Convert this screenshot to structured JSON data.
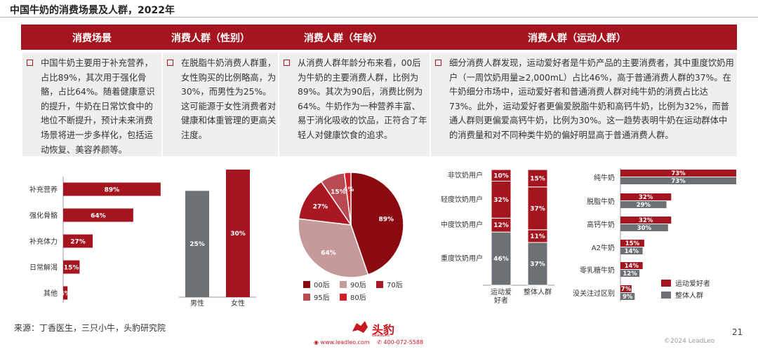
{
  "page": {
    "title": "中国牛奶的消费场景及人群，2022年",
    "source": "来源：丁香医生，三只小牛，头豹研究院",
    "page_number": "21",
    "copyright": "©2024 LeadLeo",
    "brand": {
      "name": "头豹",
      "sub": "LeadLeo",
      "website": "www.leadleo.com",
      "phone": "400-072-5588"
    }
  },
  "columns": [
    {
      "header": "消费场景",
      "text": "中国牛奶主要用于补充营养，占比89%，其次用于强化骨骼，占比64%。随着健康意识的提升，牛奶在日常饮食中的地位不断提升，预计未来消费场景将进一步多样化，包括运动恢复、美容养颜等。"
    },
    {
      "header": "消费人群（性别）",
      "text": "在脱脂牛奶消费人群重，女性购买的比例略高，为30%，而男性为25%。这可能源于女性消费者对健康和体重管理的更高关注度。"
    },
    {
      "header": "消费人群（年龄）",
      "text": "从消费人群年龄分布来看，00后为牛奶的主要消费人群，比例为89%。其次为90后，消费比例为64%。牛奶作为一种营养丰富、易于消化吸收的饮品，正符合了年轻人对健康饮食的追求。"
    },
    {
      "header": "消费人群（运动人群）",
      "text": "细分消费人群发现，运动爱好者是牛奶产品的主要消费者，其中重度饮奶用户（一周饮奶用量≥2,000mL）占比46%，高于普通消费人群的37%。在牛奶细分市场中，运动爱好者和普通消费人群对纯牛奶的消费占比达73%。此外，运动爱好者更偏爱脱脂牛奶和高钙牛奶，比例为32%，而普通人群则更偏爱高钙牛奶，比例为30%。这一趋势表明牛奶在运动群体中的消费量和对不同种类牛奶的偏好明显高于普通消费人群。"
    }
  ],
  "colors": {
    "dark_red": "#a5151f",
    "gray": "#6d7175",
    "pie": [
      "#8b0a12",
      "#c69a9a",
      "#a91822",
      "#ba4a51",
      "#d21f28"
    ]
  },
  "chart_data": [
    {
      "type": "bar",
      "orientation": "horizontal",
      "categories": [
        "补充营养",
        "强化骨骼",
        "补充体力",
        "日常解渴",
        "其他"
      ],
      "values": [
        89,
        64,
        27,
        15,
        4
      ],
      "labels": [
        "89%",
        "64%",
        "27%",
        "15%",
        "4%"
      ],
      "xlim": [
        0,
        100
      ]
    },
    {
      "type": "bar",
      "categories": [
        "男性",
        "女性"
      ],
      "values": [
        25,
        30
      ],
      "labels": [
        "25%",
        "30%"
      ],
      "ylim": [
        0,
        30
      ]
    },
    {
      "type": "pie",
      "categories": [
        "00后",
        "90后",
        "70后",
        "95后",
        "80后"
      ],
      "legend": [
        "00后",
        "90后",
        "70后",
        "95后",
        "80后"
      ],
      "values": [
        89,
        64,
        27,
        15,
        4
      ],
      "labels": [
        "89%",
        "64%",
        "27%",
        "15%",
        "4%"
      ]
    },
    {
      "type": "bar",
      "stacked": true,
      "percent": true,
      "categories": [
        "运动爱好者",
        "整体人群"
      ],
      "category_lines": [
        [
          "运动爱",
          "好者"
        ],
        [
          "整体人群"
        ]
      ],
      "segment_names": [
        "重度饮奶用户",
        "中度饮奶用户",
        "轻度饮奶用户",
        "非饮奶用户"
      ],
      "series": [
        {
          "name": "重度饮奶用户",
          "values": [
            46,
            37
          ],
          "labels": [
            "46%",
            "37%"
          ]
        },
        {
          "name": "中度饮奶用户",
          "values": [
            12,
            11
          ],
          "labels": [
            "12%",
            "11%"
          ]
        },
        {
          "name": "轻度饮奶用户",
          "values": [
            32,
            37
          ],
          "labels": [
            "32%",
            "37%"
          ]
        },
        {
          "name": "非饮奶用户",
          "values": [
            10,
            15
          ],
          "labels": [
            "10%",
            "15%"
          ]
        }
      ]
    },
    {
      "type": "bar",
      "orientation": "horizontal",
      "categories": [
        "纯牛奶",
        "脱脂牛奶",
        "高钙牛奶",
        "A2牛奶",
        "零乳糖牛奶",
        "没关注过区别"
      ],
      "series": [
        {
          "name": "运动爱好者",
          "values": [
            73,
            32,
            32,
            15,
            14,
            7
          ],
          "labels": [
            "73%",
            "32%",
            "32%",
            "15%",
            "14%",
            "7%"
          ]
        },
        {
          "name": "整体人群",
          "values": [
            73,
            29,
            30,
            14,
            12,
            9
          ],
          "labels": [
            "73%",
            "29%",
            "30%",
            "14%",
            "12%",
            "9%"
          ]
        }
      ],
      "xlim": [
        0,
        73
      ]
    }
  ]
}
